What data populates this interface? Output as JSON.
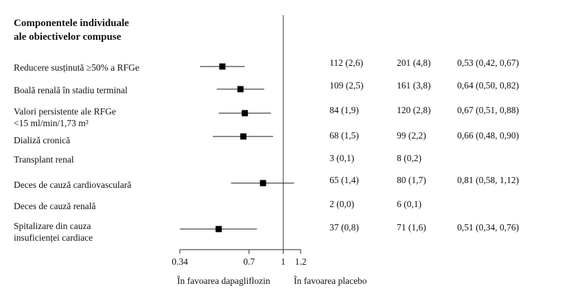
{
  "chart_data": {
    "type": "forest",
    "title_lines": [
      "Componentele individuale",
      "ale obiectivelor compuse"
    ],
    "x_scale": "log",
    "xlim": [
      0.34,
      1.2
    ],
    "reference_line": 1,
    "ticks": [
      {
        "value": 0.34,
        "label": "0.34"
      },
      {
        "value": 0.7,
        "label": "0.7"
      },
      {
        "value": 1,
        "label": "1"
      },
      {
        "value": 1.2,
        "label": "1.2"
      }
    ],
    "favor_left": "În favoarea dapagliflozin",
    "favor_right": "În favoarea placebo",
    "rows": [
      {
        "label": [
          "Reducere susținută ≥50% a RFGe"
        ],
        "dapa": "112 (2,6)",
        "placebo": "201 (4,8)",
        "hr_text": "0,53 (0,42, 0,67)",
        "hr": 0.53,
        "lo": 0.42,
        "hi": 0.67
      },
      {
        "label": [
          "Boală renală în stadiu terminal"
        ],
        "dapa": "109 (2,5)",
        "placebo": "161 (3,8)",
        "hr_text": "0,64 (0,50, 0,82)",
        "hr": 0.64,
        "lo": 0.5,
        "hi": 0.82
      },
      {
        "label": [
          "Valori persistente ale RFGe",
          "<15 ml/min/1,73 m²"
        ],
        "dapa": "84 (1,9)",
        "placebo": "120 (2,8)",
        "hr_text": "0,67 (0,51, 0,88)",
        "hr": 0.67,
        "lo": 0.51,
        "hi": 0.88
      },
      {
        "label": [
          "Dializă cronică"
        ],
        "dapa": "68 (1,5)",
        "placebo": "99 (2,2)",
        "hr_text": "0,66 (0,48, 0,90)",
        "hr": 0.66,
        "lo": 0.48,
        "hi": 0.9
      },
      {
        "label": [
          "Transplant renal"
        ],
        "dapa": "3 (0,1)",
        "placebo": "8 (0,2)",
        "hr_text": "",
        "hr": null,
        "lo": null,
        "hi": null
      },
      {
        "label": [
          "Deces de cauză cardiovasculară"
        ],
        "dapa": "65 (1,4)",
        "placebo": "80 (1,7)",
        "hr_text": "0,81 (0,58, 1,12)",
        "hr": 0.81,
        "lo": 0.58,
        "hi": 1.12
      },
      {
        "label": [
          "Deces de cauză renală"
        ],
        "dapa": "2 (0,0)",
        "placebo": "6 (0,1)",
        "hr_text": "",
        "hr": null,
        "lo": null,
        "hi": null
      },
      {
        "label": [
          "Spitalizare din cauza",
          "insuficienței cardiace"
        ],
        "dapa": "37 (0,8)",
        "placebo": "71 (1,6)",
        "hr_text": "0,51 (0,34, 0,76)",
        "hr": 0.51,
        "lo": 0.34,
        "hi": 0.76
      }
    ]
  }
}
